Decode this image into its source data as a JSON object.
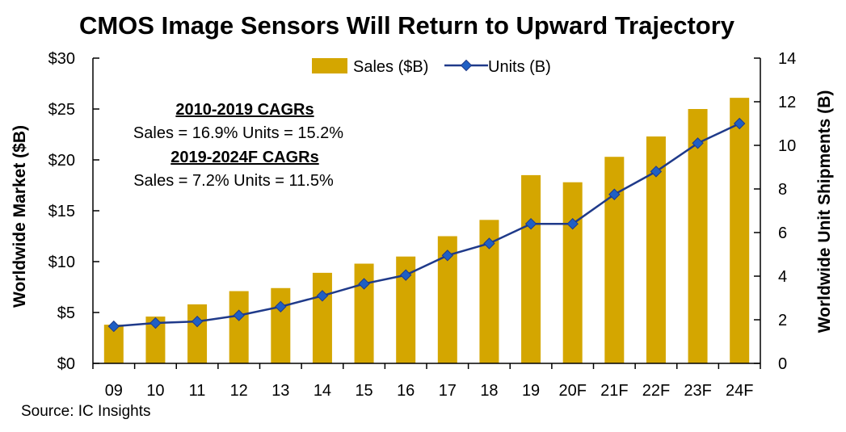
{
  "chart_data": {
    "type": "bar",
    "title": "CMOS Image Sensors Will Return to Upward Trajectory",
    "categories": [
      "09",
      "10",
      "11",
      "12",
      "13",
      "14",
      "15",
      "16",
      "17",
      "18",
      "19",
      "20F",
      "21F",
      "22F",
      "23F",
      "24F"
    ],
    "series": [
      {
        "name": "Sales ($B)",
        "type": "bar",
        "axis": "left",
        "color": "#D4A600",
        "values": [
          3.8,
          4.6,
          5.8,
          7.1,
          7.4,
          8.9,
          9.8,
          10.5,
          12.5,
          14.1,
          18.5,
          17.8,
          20.3,
          22.3,
          25.0,
          26.1
        ]
      },
      {
        "name": "Units (B)",
        "type": "line",
        "axis": "right",
        "color": "#1F3A8A",
        "values": [
          1.7,
          1.85,
          1.92,
          2.2,
          2.6,
          3.1,
          3.65,
          4.05,
          4.95,
          5.5,
          6.4,
          6.4,
          7.75,
          8.8,
          10.1,
          11.0
        ]
      }
    ],
    "ylabel": "Worldwide Market ($B)",
    "y2label": "Worldwide Unit Shipments (B)",
    "ylim": [
      0,
      30
    ],
    "y2lim": [
      0,
      14
    ],
    "yticks": [
      "$0",
      "$5",
      "$10",
      "$15",
      "$20",
      "$25",
      "$30"
    ],
    "y2ticks": [
      "0",
      "2",
      "4",
      "6",
      "8",
      "10",
      "12",
      "14"
    ],
    "legend_position": "top-center",
    "grid": false,
    "annotations": [
      {
        "heading": "2010-2019 CAGRs",
        "text": "Sales = 16.9%  Units = 15.2%"
      },
      {
        "heading": "2019-2024F CAGRs",
        "text": "Sales = 7.2%  Units = 11.5%"
      }
    ]
  },
  "source": "Source: IC Insights"
}
